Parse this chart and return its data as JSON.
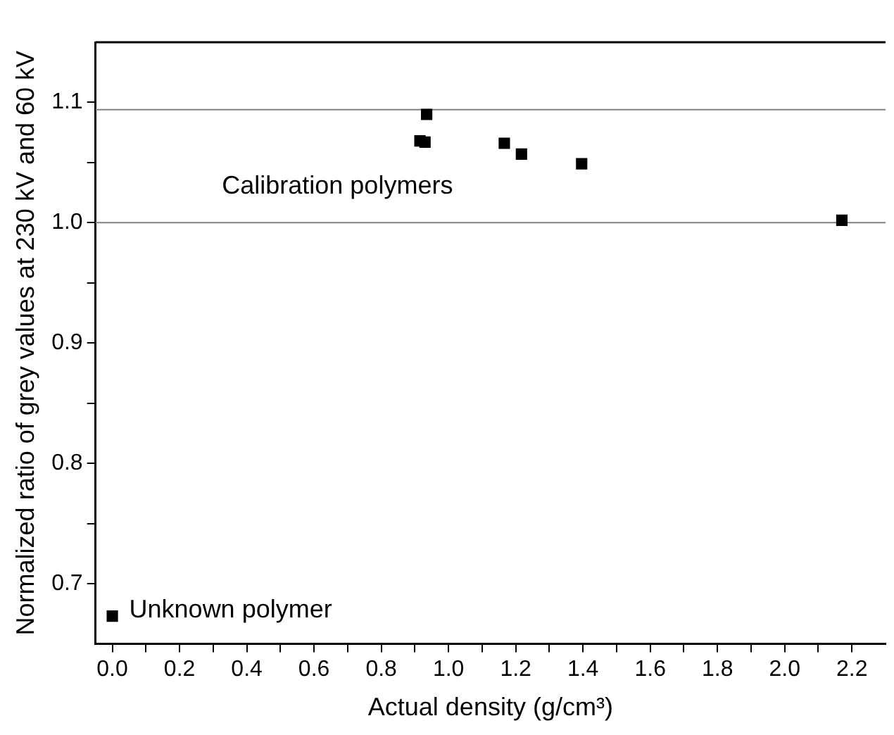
{
  "chart_data": {
    "type": "scatter",
    "xlabel": "Actual density (g/cm³)",
    "ylabel": "Normalized ratio of grey values at 230 kV and 60 kV",
    "x": [
      0.915,
      0.93,
      0.935,
      1.166,
      1.217,
      1.396,
      2.17,
      0
    ],
    "series": [
      {
        "color": "#000000",
        "values": [
          1.068,
          1.067,
          1.09,
          1.066,
          1.057,
          1.049,
          1.002,
          0.673
        ]
      }
    ],
    "xlim": [
      -0.05,
      2.3
    ],
    "xticks": [
      {
        "value": 0,
        "label": "0.0"
      },
      0.2,
      0.4,
      0.6,
      0.8,
      {
        "value": 1,
        "label": "1.0"
      },
      1.2,
      1.4,
      1.6,
      1.8,
      {
        "value": 2,
        "label": "2.0"
      },
      2.2
    ],
    "ylim": [
      0.65,
      1.15
    ],
    "yticks": [
      0.7,
      0.8,
      0.9,
      {
        "value": 1,
        "label": "1.0"
      },
      1.1
    ],
    "ref_lines": [
      {
        "axis": "y",
        "value": 1.0,
        "color": "#808080"
      },
      {
        "axis": "y",
        "value": 1.094,
        "color": "#808080"
      }
    ],
    "annotations": [
      "Calibration polymers",
      {
        "text": "Unknown polymer",
        "x": 0,
        "y": 0.673
      }
    ],
    "marker": "square",
    "legend": false,
    "grid": false
  }
}
